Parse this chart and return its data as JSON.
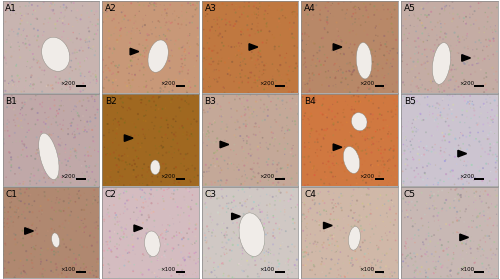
{
  "rows": 3,
  "cols": 5,
  "labels": [
    [
      "A1",
      "A2",
      "A3",
      "A4",
      "A5"
    ],
    [
      "B1",
      "B2",
      "B3",
      "B4",
      "B5"
    ],
    [
      "C1",
      "C2",
      "C3",
      "C4",
      "C5"
    ]
  ],
  "scale_bars": [
    [
      "×200",
      "×200",
      "×200",
      "×200",
      "×200"
    ],
    [
      "×200",
      "×200",
      "×200",
      "×200",
      "×200"
    ],
    [
      "×100",
      "×100",
      "×100",
      "×100",
      "×100"
    ]
  ],
  "panel_colors": [
    [
      "#c8b4b0",
      "#c89878",
      "#c07840",
      "#b88868",
      "#c4aca4"
    ],
    [
      "#c0a8a8",
      "#a06820",
      "#c4a898",
      "#d07840",
      "#ccc4d0"
    ],
    [
      "#b08870",
      "#d4bcc0",
      "#d0c8c4",
      "#d0b8a8",
      "#c8b8b4"
    ]
  ],
  "figure_bg": "#ffffff"
}
